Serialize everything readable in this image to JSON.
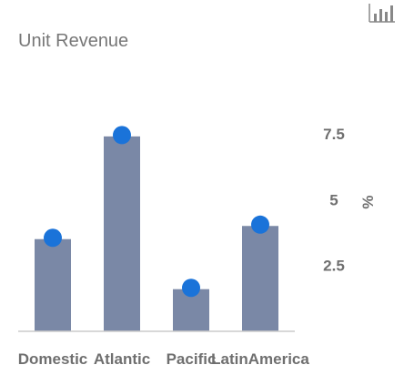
{
  "chart_data": {
    "type": "bar",
    "title": "Unit Revenue",
    "categories": [
      "Domestic",
      "Atlantic",
      "Pacific",
      "LatinAmerica"
    ],
    "series": [
      {
        "type": "bar",
        "values": [
          3.5,
          7.4,
          1.6,
          4.0
        ]
      },
      {
        "type": "scatter",
        "values": [
          3.55,
          7.45,
          1.65,
          4.05
        ]
      }
    ],
    "yaxis": {
      "label": "%",
      "ticks": [
        2.5,
        5,
        7.5
      ],
      "tick_labels": [
        "2.5",
        "5",
        "7.5"
      ],
      "range": [
        0,
        9.4
      ],
      "position": "right"
    },
    "grid": false,
    "legend": "none",
    "colors": {
      "bar": "#7a88a6",
      "marker": "#1a73d9",
      "baseline": "#cccccc",
      "text": "#6f6f6f",
      "title": "#777777"
    }
  },
  "toolbar": {
    "chart_icon": "bar-chart-icon"
  }
}
